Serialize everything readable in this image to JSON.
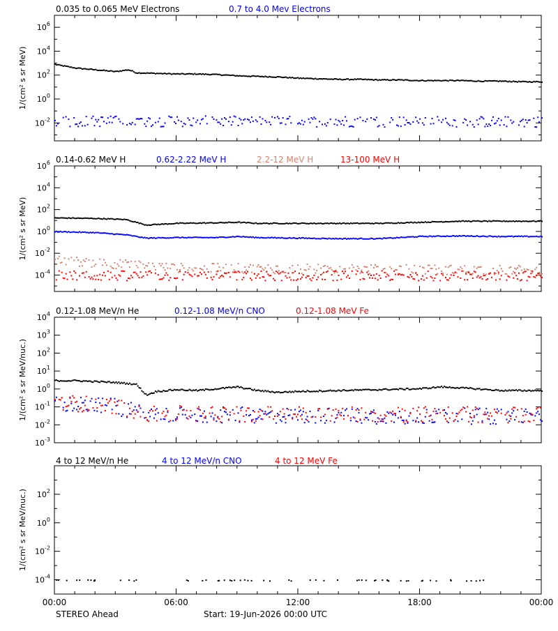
{
  "colors": {
    "black": "#000000",
    "blue": "#0000ff",
    "salmon": "#d2826e",
    "red": "#ff0000"
  },
  "footer": {
    "left": "STEREO Ahead",
    "center": "Start: 19-Jun-2026 00:00 UTC"
  },
  "xaxis": {
    "range_hours": [
      0,
      24
    ],
    "ticks": [
      0,
      6,
      12,
      18,
      24
    ],
    "tick_labels": [
      "00:00",
      "06:00",
      "12:00",
      "18:00",
      "00:00"
    ]
  },
  "chart_data": [
    {
      "type": "scatter",
      "scale": "log",
      "ylabel": "1/(cm² s sr MeV)",
      "ylim_exp": [
        -3.5,
        7
      ],
      "yticks_exp": [
        -2,
        0,
        2,
        4,
        6
      ],
      "legend": [
        {
          "text": "0.035 to 0.065 MeV Electrons",
          "color": "#000000"
        },
        {
          "text": "0.7 to 4.0 Mev Electrons",
          "color": "#0000ff"
        }
      ],
      "series": [
        {
          "name": "0.035 to 0.065 MeV Electrons",
          "color": "#000000",
          "x": [
            0,
            0.5,
            1,
            2,
            3,
            3.6,
            3.8,
            4,
            5,
            6,
            7,
            8,
            9,
            10,
            11,
            12,
            13,
            14,
            15,
            16,
            17,
            18,
            19,
            20,
            21,
            22,
            23,
            24
          ],
          "y_log10": [
            2.95,
            2.8,
            2.65,
            2.5,
            2.35,
            2.5,
            2.4,
            2.25,
            2.2,
            2.15,
            2.15,
            2.1,
            2.0,
            1.95,
            1.9,
            1.8,
            1.75,
            1.7,
            1.7,
            1.65,
            1.65,
            1.6,
            1.6,
            1.6,
            1.55,
            1.55,
            1.5,
            1.5
          ]
        },
        {
          "name": "0.7 to 4.0 Mev Electrons",
          "color": "#0000ff",
          "noise": true,
          "x": [
            0,
            24
          ],
          "y_log10": [
            -1.8,
            -1.85
          ]
        }
      ]
    },
    {
      "type": "scatter",
      "scale": "log",
      "ylabel": "1/(cm² s sr MeV)",
      "ylim_exp": [
        -5.5,
        6
      ],
      "yticks_exp": [
        -4,
        -2,
        0,
        2,
        4,
        6
      ],
      "legend": [
        {
          "text": "0.14-0.62 MeV H",
          "color": "#000000"
        },
        {
          "text": "0.62-2.22 MeV H",
          "color": "#0000ff"
        },
        {
          "text": "2.2-12 MeV H",
          "color": "#d2826e"
        },
        {
          "text": "13-100 MeV H",
          "color": "#ff0000"
        }
      ],
      "series": [
        {
          "name": "0.14-0.62 MeV H",
          "color": "#000000",
          "x": [
            0,
            2,
            3.5,
            4.5,
            6,
            8,
            9,
            10,
            12,
            14,
            16,
            18,
            20,
            22,
            24
          ],
          "y_log10": [
            1.3,
            1.25,
            1.15,
            0.65,
            0.8,
            0.85,
            0.9,
            0.8,
            0.8,
            0.8,
            0.8,
            0.9,
            1.0,
            1.0,
            1.0
          ]
        },
        {
          "name": "0.62-2.22 MeV H",
          "color": "#0000ff",
          "x": [
            0,
            2,
            3.5,
            4.5,
            6,
            8,
            9,
            10,
            12,
            14,
            16,
            18,
            20,
            22,
            24
          ],
          "y_log10": [
            0.05,
            -0.05,
            -0.25,
            -0.55,
            -0.5,
            -0.5,
            -0.4,
            -0.5,
            -0.55,
            -0.6,
            -0.6,
            -0.4,
            -0.35,
            -0.4,
            -0.4
          ]
        },
        {
          "name": "2.2-12 MeV H",
          "color": "#d2826e",
          "noise": true,
          "x": [
            0,
            3,
            6,
            24
          ],
          "y_log10": [
            -2.6,
            -2.9,
            -3.3,
            -3.5
          ]
        },
        {
          "name": "13-100 MeV H",
          "color": "#ff0000",
          "noise": true,
          "x": [
            0,
            24
          ],
          "y_log10": [
            -4.0,
            -4.0
          ]
        }
      ]
    },
    {
      "type": "scatter",
      "scale": "log",
      "ylabel": "1/(cm² s sr MeV/nuc.)",
      "ylim_exp": [
        -3,
        4
      ],
      "yticks_exp": [
        -3,
        -2,
        -1,
        0,
        1,
        2,
        3,
        4
      ],
      "legend": [
        {
          "text": "0.12-1.08 MeV/n He",
          "color": "#000000"
        },
        {
          "text": "0.12-1.08 MeV/n CNO",
          "color": "#0000ff"
        },
        {
          "text": "0.12-1.08 MeV Fe",
          "color": "#ff0000"
        }
      ],
      "series": [
        {
          "name": "0.12-1.08 MeV/n He",
          "color": "#000000",
          "x": [
            0,
            1,
            2,
            3,
            4,
            4.5,
            5,
            6,
            7,
            8,
            9,
            10,
            11,
            12,
            14,
            16,
            18,
            19,
            20,
            22,
            24
          ],
          "y_log10": [
            0.5,
            0.5,
            0.45,
            0.4,
            0.3,
            -0.3,
            -0.1,
            0.0,
            -0.05,
            0.05,
            0.15,
            -0.05,
            -0.15,
            -0.1,
            -0.05,
            0.0,
            0.05,
            0.15,
            0.1,
            -0.05,
            -0.05
          ]
        },
        {
          "name": "0.12-1.08 MeV/n CNO",
          "color": "#0000ff",
          "noise": true,
          "x": [
            0,
            3,
            4.5,
            24
          ],
          "y_log10": [
            -0.8,
            -0.95,
            -1.4,
            -1.5
          ]
        },
        {
          "name": "0.12-1.08 MeV Fe",
          "color": "#ff0000",
          "noise": true,
          "x": [
            0,
            3,
            4.5,
            24
          ],
          "y_log10": [
            -0.7,
            -0.9,
            -1.35,
            -1.4
          ]
        }
      ]
    },
    {
      "type": "scatter",
      "scale": "log",
      "ylabel": "1/(cm² s sr MeV/nuc.)",
      "ylim_exp": [
        -5,
        4
      ],
      "yticks_exp": [
        -4,
        -2,
        0,
        2
      ],
      "legend": [
        {
          "text": "4 to 12 MeV/n He",
          "color": "#000000"
        },
        {
          "text": "4 to 12 MeV/n CNO",
          "color": "#0000ff"
        },
        {
          "text": "4 to 12 MeV Fe",
          "color": "#ff0000"
        }
      ],
      "series": [
        {
          "name": "4 to 12 MeV/n He",
          "color": "#000000",
          "sparse": true,
          "x": [
            0,
            24
          ],
          "y_log10": [
            -4.0,
            -4.0
          ]
        }
      ]
    }
  ]
}
